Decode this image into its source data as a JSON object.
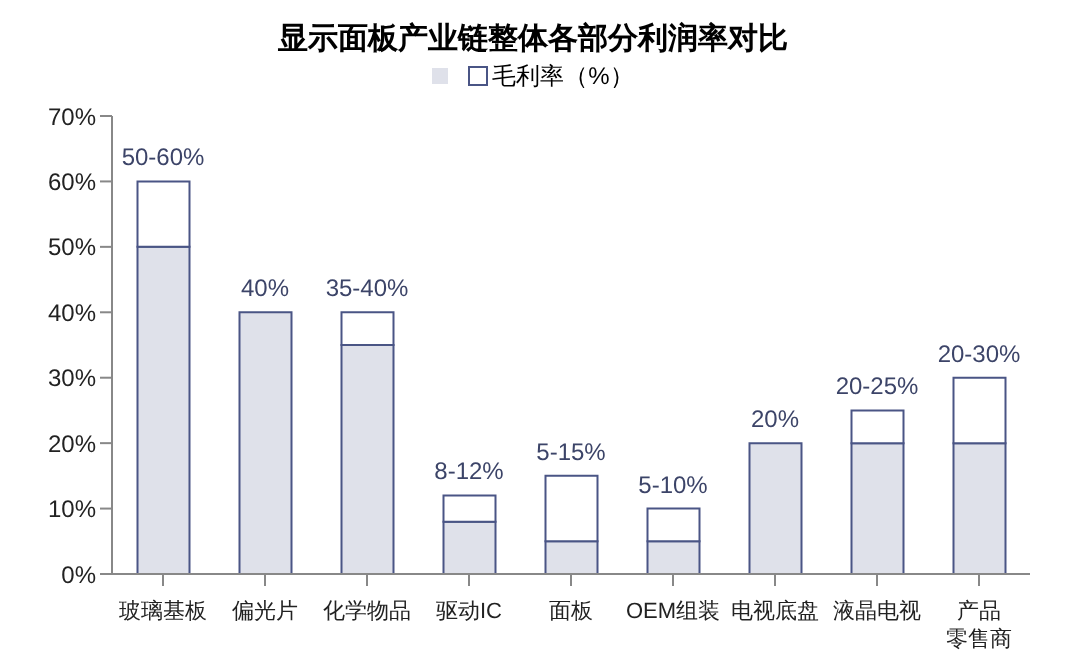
{
  "chart_data": {
    "type": "bar",
    "title": "显示面板产业链整体各部分利润率对比",
    "categories": [
      "玻璃基板",
      "偏光片",
      "化学物品",
      "驱动IC",
      "面板",
      "OEM组装",
      "电视底盘",
      "液晶电视",
      "产品零售商"
    ],
    "stacked": true,
    "legend": "top",
    "grid": false,
    "series": [
      {
        "color": "#dfe1ea",
        "values": [
          50,
          40,
          35,
          8,
          5,
          5,
          20,
          20,
          20
        ]
      },
      {
        "name": "毛利率（%）",
        "color": "#ffffff",
        "values": [
          10,
          0,
          5,
          4,
          10,
          5,
          0,
          5,
          10
        ]
      }
    ],
    "annotations": [
      {
        "text": "50-60%",
        "x": "玻璃基板",
        "y": 60
      },
      {
        "text": "40%",
        "x": "偏光片",
        "y": 40
      },
      {
        "text": "35-40%",
        "x": "化学物品",
        "y": 40
      },
      {
        "text": "8-12%",
        "x": "驱动IC",
        "y": 12
      },
      {
        "text": "5-15%",
        "x": "面板",
        "y": 15
      },
      {
        "text": "5-10%",
        "x": "OEM组装",
        "y": 10
      },
      {
        "text": "20%",
        "x": "电视底盘",
        "y": 20
      },
      {
        "text": "20-25%",
        "x": "液晶电视",
        "y": 25
      },
      {
        "text": "20-30%",
        "x": "产品零售商",
        "y": 30
      }
    ],
    "ylim": [
      0,
      70
    ],
    "yticks": [
      {
        "value": 0,
        "label": "0%"
      },
      {
        "value": 10,
        "label": "10%"
      },
      {
        "value": 20,
        "label": "20%"
      },
      {
        "value": 30,
        "label": "30%"
      },
      {
        "value": 40,
        "label": "40%"
      },
      {
        "value": 50,
        "label": "50%"
      },
      {
        "value": 60,
        "label": "60%"
      },
      {
        "value": 70,
        "label": "70%"
      }
    ]
  }
}
